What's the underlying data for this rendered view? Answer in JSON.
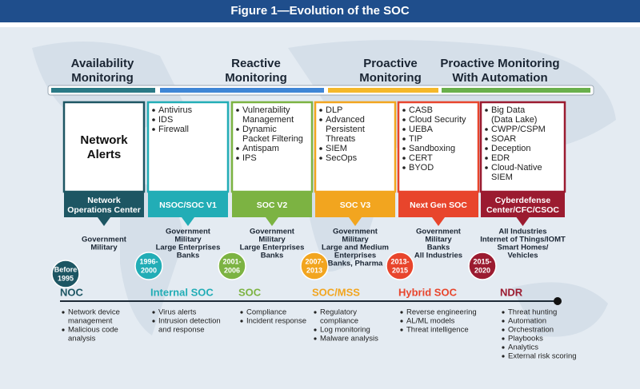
{
  "title": "Figure 1—Evolution of the SOC",
  "phases": [
    {
      "lines": [
        "Availability",
        "Monitoring"
      ]
    },
    {
      "lines": [
        "Reactive",
        "Monitoring"
      ]
    },
    {
      "lines": [
        "Proactive",
        "Monitoring"
      ]
    },
    {
      "lines": [
        "Proactive Monitoring",
        "With Automation"
      ]
    }
  ],
  "columns": [
    {
      "box_text": [
        "Network",
        "Alerts"
      ],
      "items": [],
      "ribbon": [
        "Network",
        "Operations Center"
      ],
      "sectors": [
        "Government",
        "Military"
      ],
      "year": [
        "Before",
        "1995"
      ],
      "stage": "NOC",
      "activities": [
        [
          "Network device",
          "management"
        ],
        [
          "Malicious code",
          "analysis"
        ]
      ]
    },
    {
      "box_text": [],
      "items": [
        [
          "Antivirus"
        ],
        [
          "IDS"
        ],
        [
          "Firewall"
        ]
      ],
      "ribbon": [
        "NSOC/SOC V1"
      ],
      "sectors": [
        "Government",
        "Military",
        "Large Enterprises",
        "Banks"
      ],
      "year": [
        "1996-",
        "2000"
      ],
      "stage": "Internal SOC",
      "activities": [
        [
          "Virus alerts"
        ],
        [
          "Intrusion detection",
          "and response"
        ]
      ]
    },
    {
      "box_text": [],
      "items": [
        [
          "Vulnerability",
          "Management"
        ],
        [
          "Dynamic",
          "Packet Filtering"
        ],
        [
          "Antispam"
        ],
        [
          "IPS"
        ]
      ],
      "ribbon": [
        "SOC V2"
      ],
      "sectors": [
        "Government",
        "Military",
        "Large Enterprises",
        "Banks"
      ],
      "year": [
        "2001-",
        "2006"
      ],
      "stage": "SOC",
      "activities": [
        [
          "Compliance"
        ],
        [
          "Incident response"
        ]
      ]
    },
    {
      "box_text": [],
      "items": [
        [
          "DLP"
        ],
        [
          "Advanced",
          "Persistent",
          "Threats"
        ],
        [
          "SIEM"
        ],
        [
          "SecOps"
        ]
      ],
      "ribbon": [
        "SOC V3"
      ],
      "sectors": [
        "Government",
        "Military",
        "Large and Medium",
        "Enterprises",
        "Banks, Pharma"
      ],
      "year": [
        "2007-",
        "2013"
      ],
      "stage": "SOC/MSS",
      "activities": [
        [
          "Regulatory",
          "compliance"
        ],
        [
          "Log monitoring"
        ],
        [
          "Malware analysis"
        ]
      ]
    },
    {
      "box_text": [],
      "items": [
        [
          "CASB"
        ],
        [
          "Cloud Security"
        ],
        [
          "UEBA"
        ],
        [
          "TIP"
        ],
        [
          "Sandboxing"
        ],
        [
          "CERT"
        ],
        [
          "BYOD"
        ]
      ],
      "ribbon": [
        "Next Gen SOC"
      ],
      "sectors": [
        "Government",
        "Military",
        "Banks",
        "All Industries"
      ],
      "year": [
        "2013-",
        "2015"
      ],
      "stage": "Hybrid SOC",
      "activities": [
        [
          "Reverse engineering"
        ],
        [
          "AL/ML models"
        ],
        [
          "Threat intelligence"
        ]
      ]
    },
    {
      "box_text": [],
      "items": [
        [
          "Big Data",
          "(Data Lake)"
        ],
        [
          "CWPP/CSPM"
        ],
        [
          "SOAR"
        ],
        [
          "Deception"
        ],
        [
          "EDR"
        ],
        [
          "Cloud-Native",
          "SIEM"
        ]
      ],
      "ribbon": [
        "Cyberdefense",
        "Center/CFC/CSOC"
      ],
      "sectors": [
        "All Industries",
        "Internet of Things/IOMT",
        "Smart Homes/",
        "Vehicles"
      ],
      "year": [
        "2015-",
        "2020"
      ],
      "stage": "NDR",
      "activities": [
        [
          "Threat hunting"
        ],
        [
          "Automation"
        ],
        [
          "Orchestration"
        ],
        [
          "Playbooks"
        ],
        [
          "Analytics"
        ],
        [
          "External risk scoring"
        ]
      ]
    }
  ]
}
